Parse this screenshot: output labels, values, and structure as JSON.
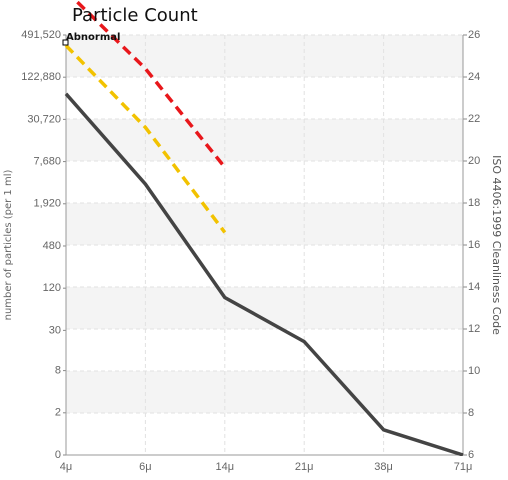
{
  "chart_data": {
    "type": "line",
    "title": "Particle Count",
    "categories": [
      "4μ",
      "6μ",
      "14μ",
      "21μ",
      "38μ",
      "71μ"
    ],
    "y_label": "number of particles (per 1 ml)",
    "y2_label": "ISO 4406:1999 Cleanliness Code",
    "log_y": true,
    "ylim": [
      0.5,
      491520
    ],
    "yticks": [
      {
        "value": 0.5,
        "label": "0"
      },
      2,
      8,
      30,
      120,
      480,
      {
        "value": 1920,
        "label": "1,920"
      },
      {
        "value": 7680,
        "label": "7,680"
      },
      {
        "value": 30720,
        "label": "30,720"
      },
      {
        "value": 122880,
        "label": "122,880"
      },
      {
        "value": 491520,
        "label": "491,520"
      }
    ],
    "y2lim": [
      6,
      26
    ],
    "y2ticks": [
      6,
      8,
      10,
      12,
      14,
      16,
      18,
      20,
      22,
      24,
      26
    ],
    "grid": true,
    "annotations": [
      {
        "text": "Abnormal"
      }
    ],
    "series": [
      {
        "color": "#444444",
        "dashed": false,
        "axis": "y2",
        "values": [
          23.2,
          18.9,
          13.5,
          11.4,
          7.2,
          6
        ]
      },
      {
        "color": "#f2c200",
        "dashed": true,
        "axis": "y2",
        "values": [
          25.5,
          21.6,
          16.6,
          null,
          null,
          null
        ]
      },
      {
        "color": "#e8171b",
        "dashed": true,
        "axis": "y2",
        "values": [
          28.1,
          24.4,
          19.7,
          null,
          null,
          null
        ]
      }
    ]
  }
}
